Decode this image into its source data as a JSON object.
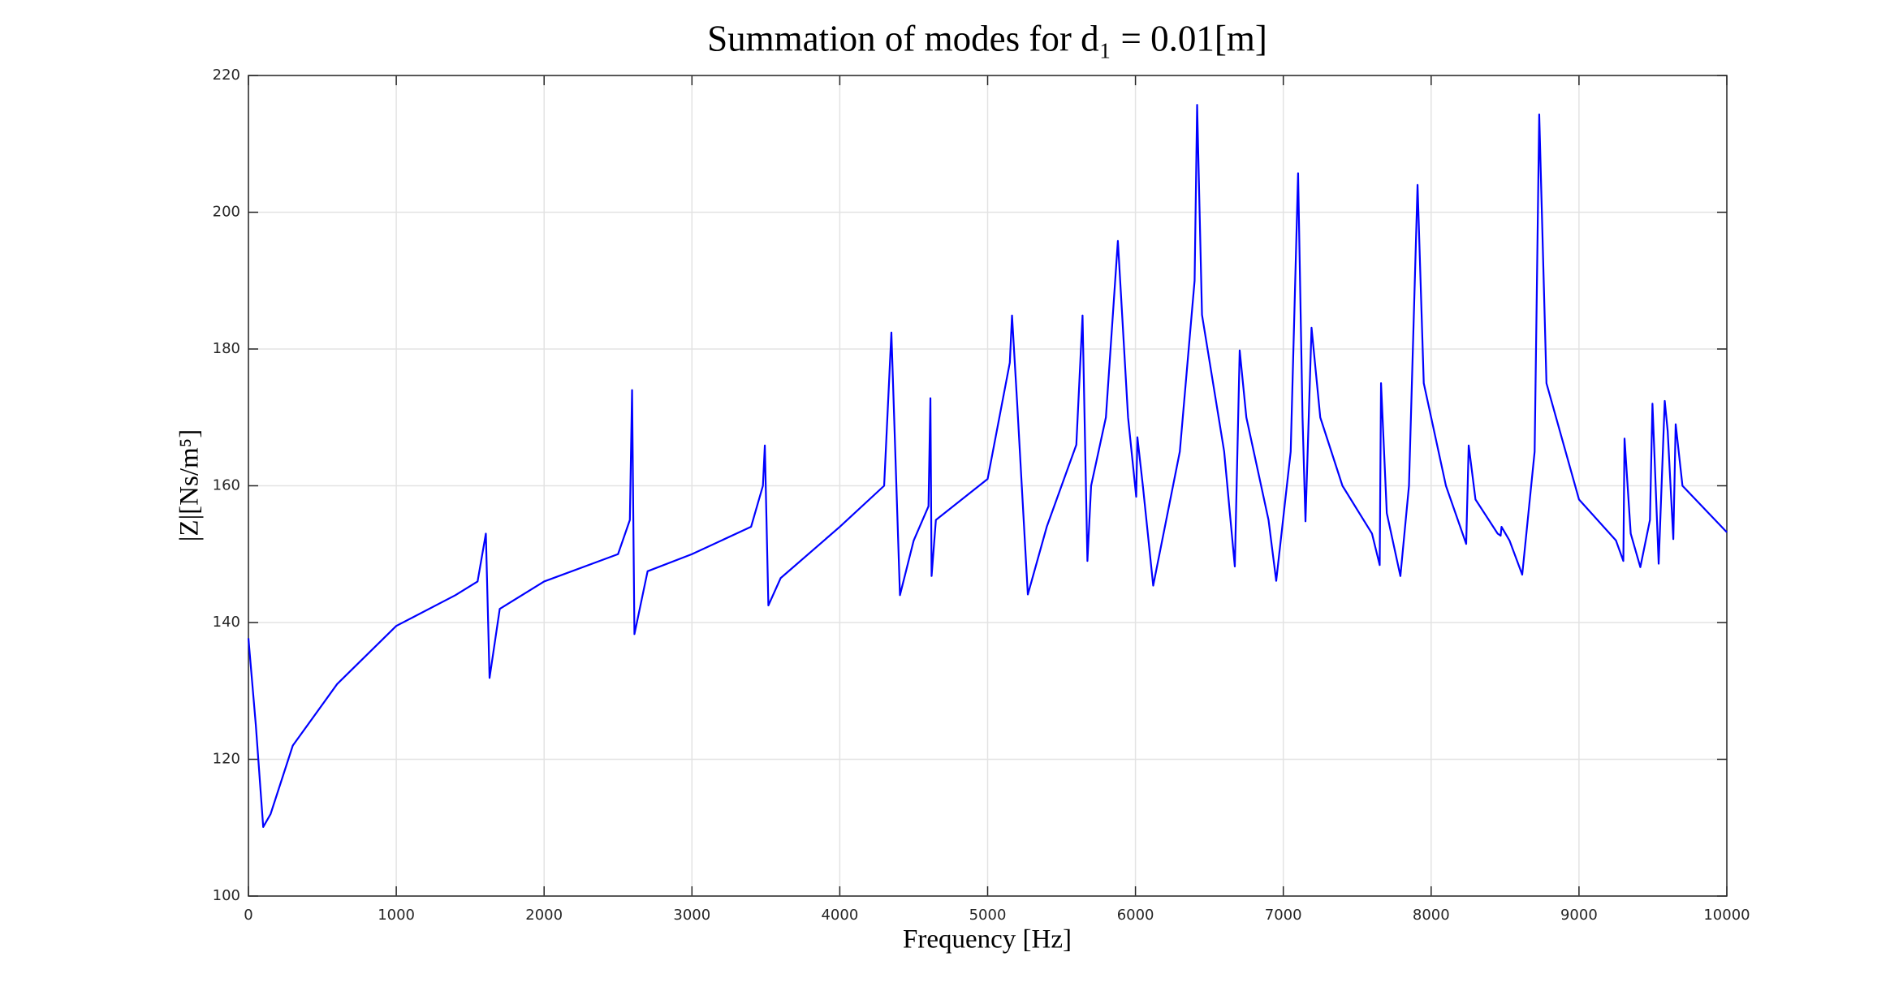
{
  "chart_data": {
    "type": "line",
    "title": "Summation of modes for d₁ = 0.01[m]",
    "x_label": "Frequency [Hz]",
    "y_label": "|Z|[Ns/m⁵]",
    "xlim": [
      0,
      10000
    ],
    "ylim": [
      100,
      220
    ],
    "xticks": [
      0,
      1000,
      2000,
      3000,
      4000,
      5000,
      6000,
      7000,
      8000,
      9000,
      10000
    ],
    "yticks": [
      100,
      120,
      140,
      160,
      180,
      200,
      220
    ],
    "grid": true,
    "x": [
      0,
      50,
      100,
      150,
      300,
      600,
      1000,
      1400,
      1550,
      1606,
      1631,
      1700,
      2000,
      2500,
      2580,
      2595,
      2611,
      2700,
      3000,
      3400,
      3480,
      3493,
      3517,
      3600,
      4000,
      4300,
      4349,
      4407,
      4500,
      4600,
      4613,
      4621,
      4650,
      5000,
      5150,
      5165,
      5200,
      5272,
      5400,
      5600,
      5642,
      5675,
      5700,
      5800,
      5881,
      5950,
      6005,
      6013,
      6050,
      6120,
      6300,
      6400,
      6417,
      6450,
      6600,
      6672,
      6705,
      6750,
      6900,
      6952,
      7050,
      7100,
      7130,
      7150,
      7191,
      7250,
      7400,
      7600,
      7652,
      7661,
      7700,
      7792,
      7850,
      7908,
      7950,
      8100,
      8237,
      8254,
      8300,
      8450,
      8470,
      8476,
      8530,
      8616,
      8700,
      8731,
      8780,
      9000,
      9250,
      9300,
      9308,
      9350,
      9415,
      9480,
      9497,
      9539,
      9580,
      9600,
      9638,
      9654,
      9700,
      10000
    ],
    "series": [
      {
        "name": "|Z|",
        "color": "#0000ff",
        "values": [
          137.7,
          125,
          110.1,
          112,
          122,
          131,
          139.5,
          144,
          146,
          153,
          131.9,
          142,
          146,
          150,
          155,
          174,
          138.3,
          147.5,
          150,
          154,
          160,
          165.9,
          142.5,
          146.5,
          154,
          160,
          182.4,
          144,
          152,
          157,
          172.8,
          146.8,
          155,
          161,
          178,
          184.9,
          172,
          144.1,
          154,
          166,
          184.9,
          149,
          160,
          170,
          195.8,
          170,
          158.4,
          167.1,
          160,
          145.4,
          165,
          190,
          215.7,
          185,
          165,
          148.2,
          179.8,
          170,
          155,
          146.1,
          165,
          205.7,
          170,
          154.8,
          183.1,
          170,
          160,
          153,
          148.4,
          175,
          156,
          146.8,
          160,
          204,
          175,
          160,
          151.5,
          165.9,
          158,
          153,
          152.7,
          154,
          152,
          147,
          165,
          214.3,
          175,
          158,
          152,
          149,
          166.9,
          153,
          148.1,
          155,
          172,
          148.6,
          172.4,
          168,
          152.2,
          169,
          160,
          153.2
        ]
      }
    ]
  }
}
